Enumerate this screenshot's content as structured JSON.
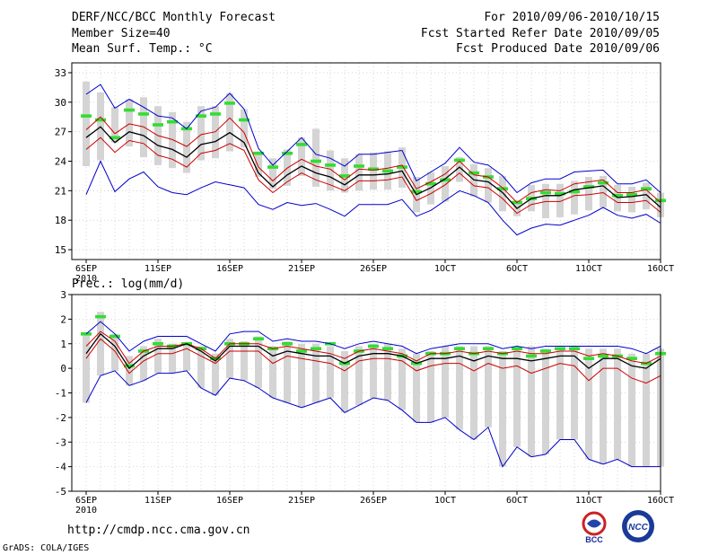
{
  "header": {
    "title": "DERF/NCC/BCC Monthly Forecast",
    "member_size": "Member Size=40",
    "variable": "Mean Surf. Temp.: °C",
    "forecast_period": "For 2010/09/06-2010/10/15",
    "started_refer_date": "Fcst Started Refer Date 2010/09/05",
    "produced_date": "Fcst Produced Date 2010/09/06"
  },
  "footer": {
    "url": "http://cmdp.ncc.cma.gov.cn",
    "credit": "GrADS: COLA/IGES",
    "logo_bcc": "BCC",
    "logo_ncc": "NCC"
  },
  "colors": {
    "mean": "#000000",
    "spread": "#cc0000",
    "extreme": "#0000cc",
    "box": "#d4d4d4",
    "marker": "#33dd33"
  },
  "chart_data": [
    {
      "type": "line",
      "title": "Mean Surf. Temp.: °C",
      "xlabel": "",
      "ylabel": "",
      "xlim": [
        1,
        40
      ],
      "ylim": [
        14,
        34
      ],
      "yticks": [
        15,
        18,
        21,
        24,
        27,
        30,
        33
      ],
      "xticks": [
        {
          "day": 1,
          "label": "6SEP",
          "sub": "2010"
        },
        {
          "day": 6,
          "label": "11SEP"
        },
        {
          "day": 11,
          "label": "16SEP"
        },
        {
          "day": 16,
          "label": "21SEP"
        },
        {
          "day": 21,
          "label": "26SEP"
        },
        {
          "day": 26,
          "label": "1OCT"
        },
        {
          "day": 31,
          "label": "6OCT"
        },
        {
          "day": 36,
          "label": "11OCT"
        },
        {
          "day": 41,
          "label": "16OCT"
        }
      ],
      "series": [
        {
          "name": "max",
          "values": [
            30.8,
            31.8,
            29.4,
            30.3,
            29.5,
            28.6,
            28.4,
            27.3,
            29.1,
            29.5,
            30.9,
            29.3,
            25.3,
            23.6,
            25.0,
            26.4,
            24.7,
            24.3,
            23.5,
            24.7,
            24.7,
            24.9,
            25.1,
            22.0,
            22.9,
            23.8,
            25.4,
            23.9,
            23.6,
            22.5,
            20.8,
            21.8,
            22.2,
            22.2,
            22.9,
            23.0,
            23.1,
            21.7,
            21.7,
            22.1,
            20.8
          ]
        },
        {
          "name": "upper",
          "values": [
            27.2,
            28.5,
            26.8,
            27.8,
            27.5,
            26.6,
            26.2,
            25.5,
            26.7,
            27.0,
            28.4,
            26.9,
            23.4,
            22.0,
            23.3,
            24.2,
            23.5,
            23.2,
            22.1,
            23.2,
            23.1,
            23.3,
            23.6,
            21.2,
            21.9,
            22.7,
            24.0,
            22.6,
            22.4,
            21.3,
            19.8,
            20.8,
            21.1,
            21.0,
            21.7,
            21.9,
            22.1,
            20.8,
            20.8,
            21.1,
            19.8
          ]
        },
        {
          "name": "mean",
          "values": [
            26.4,
            27.5,
            25.9,
            27.0,
            26.6,
            25.6,
            25.2,
            24.4,
            25.7,
            26.0,
            26.9,
            25.9,
            22.8,
            21.4,
            22.6,
            23.5,
            22.8,
            22.4,
            21.6,
            22.6,
            22.6,
            22.7,
            23.0,
            20.6,
            21.3,
            22.2,
            23.4,
            22.1,
            21.9,
            20.8,
            19.2,
            20.2,
            20.5,
            20.5,
            21.1,
            21.3,
            21.5,
            20.3,
            20.4,
            20.6,
            19.3
          ]
        },
        {
          "name": "lower",
          "values": [
            25.2,
            26.4,
            24.9,
            26.1,
            25.8,
            24.6,
            24.2,
            23.4,
            24.8,
            25.1,
            25.8,
            25.1,
            22.1,
            20.8,
            21.9,
            22.8,
            22.1,
            21.6,
            21.0,
            22.0,
            22.0,
            22.1,
            22.4,
            20.0,
            20.7,
            21.6,
            22.8,
            21.5,
            21.3,
            20.2,
            18.7,
            19.6,
            19.9,
            19.9,
            20.5,
            20.6,
            20.8,
            19.8,
            19.8,
            20.0,
            18.8
          ]
        },
        {
          "name": "min",
          "values": [
            20.6,
            24.0,
            20.9,
            22.2,
            22.9,
            21.4,
            20.8,
            20.6,
            21.3,
            21.9,
            21.6,
            21.3,
            19.6,
            19.1,
            19.8,
            19.5,
            19.7,
            19.1,
            18.4,
            19.6,
            19.6,
            19.6,
            20.1,
            18.4,
            19.0,
            20.0,
            21.0,
            20.5,
            19.8,
            18.0,
            16.5,
            17.2,
            17.6,
            17.5,
            18.0,
            18.5,
            19.3,
            18.5,
            18.2,
            18.6,
            17.7
          ]
        }
      ],
      "boxes": {
        "upper": [
          32.1,
          31.0,
          29.5,
          30.3,
          30.5,
          29.6,
          29.0,
          28.0,
          29.6,
          29.6,
          30.9,
          29.3,
          25.0,
          24.3,
          25.2,
          26.4,
          27.3,
          25.1,
          24.3,
          24.7,
          24.9,
          25.0,
          25.4,
          22.4,
          22.9,
          23.5,
          24.4,
          23.7,
          23.3,
          22.5,
          20.0,
          21.6,
          21.7,
          21.7,
          22.0,
          22.4,
          22.5,
          21.6,
          21.4,
          21.8,
          20.8
        ],
        "lower": [
          23.5,
          24.1,
          25.9,
          25.5,
          24.4,
          23.6,
          23.3,
          22.8,
          24.1,
          24.3,
          25.0,
          25.4,
          22.4,
          21.2,
          21.5,
          22.5,
          21.4,
          21.0,
          20.8,
          21.0,
          21.1,
          21.1,
          21.3,
          18.8,
          19.6,
          19.9,
          21.9,
          20.4,
          19.8,
          18.9,
          18.4,
          18.9,
          18.2,
          18.3,
          18.6,
          19.0,
          19.3,
          18.9,
          18.8,
          19.1,
          18.3
        ]
      },
      "markers": [
        28.6,
        28.2,
        26.4,
        29.2,
        28.8,
        27.7,
        28.0,
        27.3,
        28.6,
        28.8,
        29.9,
        28.2,
        24.8,
        23.4,
        24.8,
        25.7,
        24.0,
        23.6,
        22.5,
        23.5,
        23.2,
        23.0,
        23.4,
        20.9,
        21.7,
        22.1,
        24.1,
        22.8,
        22.4,
        21.2,
        19.8,
        20.2,
        20.8,
        20.7,
        20.9,
        21.4,
        21.8,
        20.5,
        20.6,
        21.2,
        20.0
      ]
    },
    {
      "type": "line",
      "title": "Prec.: log(mm/d)",
      "xlabel": "",
      "ylabel": "",
      "xlim": [
        1,
        40
      ],
      "ylim": [
        -5,
        3
      ],
      "yticks": [
        -5,
        -4,
        -3,
        -2,
        -1,
        0,
        1,
        2,
        3
      ],
      "xticks": [
        {
          "day": 1,
          "label": "6SEP",
          "sub": "2010"
        },
        {
          "day": 6,
          "label": "11SEP"
        },
        {
          "day": 11,
          "label": "16SEP"
        },
        {
          "day": 16,
          "label": "21SEP"
        },
        {
          "day": 21,
          "label": "26SEP"
        },
        {
          "day": 26,
          "label": "1OCT"
        },
        {
          "day": 31,
          "label": "6OCT"
        },
        {
          "day": 36,
          "label": "11OCT"
        },
        {
          "day": 41,
          "label": "16OCT"
        }
      ],
      "series": [
        {
          "name": "max",
          "values": [
            1.4,
            1.9,
            1.4,
            0.7,
            1.1,
            1.3,
            1.3,
            1.3,
            1.0,
            0.7,
            1.4,
            1.5,
            1.5,
            1.1,
            1.2,
            1.1,
            1.1,
            1.0,
            0.8,
            1.0,
            1.1,
            1.0,
            0.9,
            0.6,
            0.8,
            0.9,
            1.0,
            1.0,
            1.0,
            0.8,
            0.9,
            0.8,
            0.9,
            0.9,
            0.9,
            0.9,
            0.9,
            0.9,
            0.8,
            0.6,
            0.9
          ]
        },
        {
          "name": "upper",
          "values": [
            0.9,
            1.5,
            1.1,
            0.2,
            0.7,
            0.9,
            0.9,
            1.0,
            0.8,
            0.4,
            1.0,
            1.0,
            1.0,
            0.8,
            0.9,
            0.8,
            0.7,
            0.6,
            0.4,
            0.7,
            0.8,
            0.7,
            0.6,
            0.3,
            0.6,
            0.6,
            0.7,
            0.6,
            0.7,
            0.6,
            0.7,
            0.6,
            0.6,
            0.7,
            0.7,
            0.5,
            0.6,
            0.5,
            0.3,
            0.2,
            0.5
          ]
        },
        {
          "name": "mean",
          "values": [
            0.6,
            1.4,
            0.9,
            0.0,
            0.5,
            0.8,
            0.8,
            1.0,
            0.7,
            0.3,
            0.9,
            0.9,
            0.9,
            0.5,
            0.7,
            0.6,
            0.5,
            0.5,
            0.2,
            0.5,
            0.6,
            0.6,
            0.5,
            0.2,
            0.4,
            0.4,
            0.5,
            0.3,
            0.5,
            0.4,
            0.4,
            0.3,
            0.4,
            0.5,
            0.5,
            0.0,
            0.4,
            0.4,
            0.1,
            0.0,
            0.4
          ]
        },
        {
          "name": "lower",
          "values": [
            0.4,
            1.2,
            0.7,
            -0.2,
            0.3,
            0.6,
            0.6,
            0.8,
            0.5,
            0.2,
            0.7,
            0.7,
            0.7,
            0.2,
            0.5,
            0.4,
            0.3,
            0.2,
            -0.1,
            0.3,
            0.4,
            0.4,
            0.3,
            -0.1,
            0.1,
            0.2,
            0.2,
            -0.1,
            0.2,
            0.0,
            0.1,
            -0.2,
            0.0,
            0.2,
            0.1,
            -0.5,
            0.0,
            0.0,
            -0.4,
            -0.6,
            -0.3
          ]
        },
        {
          "name": "min",
          "values": [
            -1.4,
            -0.3,
            -0.1,
            -0.7,
            -0.5,
            -0.2,
            -0.2,
            -0.1,
            -0.8,
            -1.1,
            -0.4,
            -0.5,
            -0.8,
            -1.2,
            -1.4,
            -1.6,
            -1.4,
            -1.2,
            -1.8,
            -1.5,
            -1.2,
            -1.3,
            -1.7,
            -2.2,
            -2.2,
            -2.0,
            -2.5,
            -2.9,
            -2.4,
            -4.0,
            -3.2,
            -3.6,
            -3.5,
            -2.9,
            -2.9,
            -3.7,
            -3.9,
            -3.7,
            -4.0,
            -4.0,
            -4.0
          ]
        }
      ],
      "boxes": {
        "upper": [
          1.4,
          2.3,
          1.4,
          0.5,
          0.9,
          1.2,
          1.0,
          1.0,
          0.9,
          0.6,
          1.2,
          1.1,
          1.3,
          0.9,
          1.1,
          1.0,
          1.0,
          0.9,
          0.7,
          0.9,
          1.0,
          1.0,
          0.8,
          0.6,
          0.7,
          0.9,
          0.9,
          0.9,
          0.9,
          0.7,
          0.8,
          0.9,
          0.8,
          0.8,
          0.9,
          0.8,
          0.8,
          0.8,
          0.6,
          0.6,
          0.8
        ]
      },
      "markers": [
        1.4,
        2.1,
        1.3,
        0.1,
        0.7,
        1.0,
        0.9,
        1.0,
        0.8,
        0.4,
        1.0,
        1.0,
        1.2,
        0.8,
        1.0,
        0.7,
        0.8,
        1.0,
        0.2,
        0.7,
        0.9,
        0.8,
        0.5,
        0.2,
        0.6,
        0.6,
        0.8,
        0.6,
        0.8,
        0.6,
        0.8,
        0.5,
        0.7,
        0.8,
        0.8,
        0.4,
        0.5,
        0.5,
        0.4,
        0.2,
        0.6
      ]
    }
  ]
}
